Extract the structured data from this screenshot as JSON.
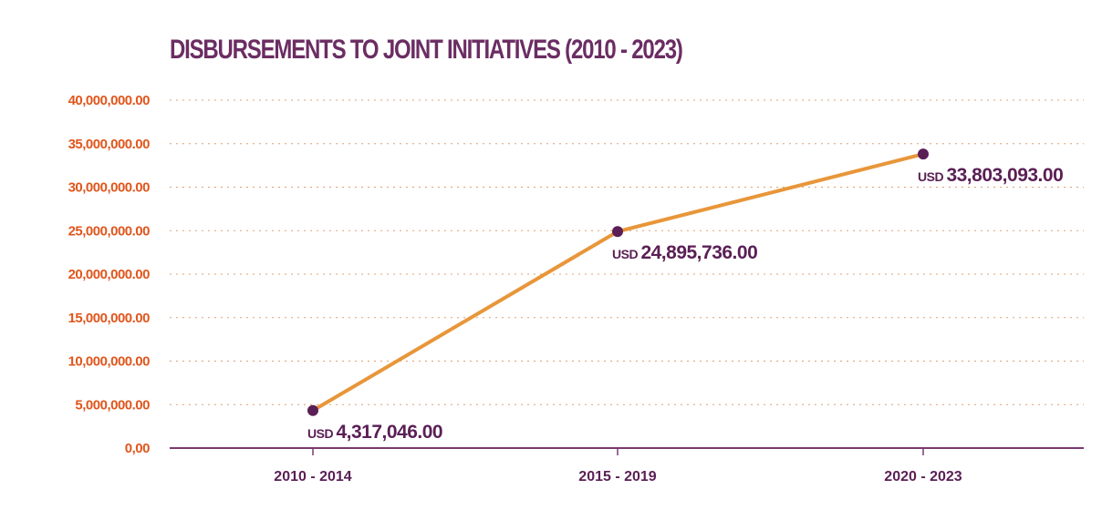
{
  "chart_data": {
    "type": "line",
    "title": "DISBURSEMENTS TO JOINT INITIATIVES (2010 - 2023)",
    "xlabel": "",
    "ylabel": "",
    "categories": [
      "2010 - 2014",
      "2015 - 2019",
      "2020 - 2023"
    ],
    "series": [
      {
        "values": [
          4317046.0,
          24895736.0,
          33803093.0
        ],
        "labels": [
          "4,317,046.00",
          "24,895,736.00",
          "33,803,093.00"
        ],
        "currency": "USD"
      }
    ],
    "ylim": [
      0,
      40000000
    ],
    "yticks": [
      0,
      5000000,
      10000000,
      15000000,
      20000000,
      25000000,
      30000000,
      35000000,
      40000000
    ],
    "ytick_labels": [
      "0,00",
      "5,000,000.00",
      "10,000,000.00",
      "15,000,000.00",
      "20,000,000.00",
      "25,000,000.00",
      "30,000,000.00",
      "35,000,000.00",
      "40,000,000.00"
    ],
    "grid": true,
    "legend": "none",
    "colors": {
      "line": "#e8963a",
      "marker": "#5a1f55",
      "ytick": "#e0561c",
      "title": "#6b2d63",
      "axis": "#7a3a72",
      "grid": "#e0a070"
    }
  }
}
